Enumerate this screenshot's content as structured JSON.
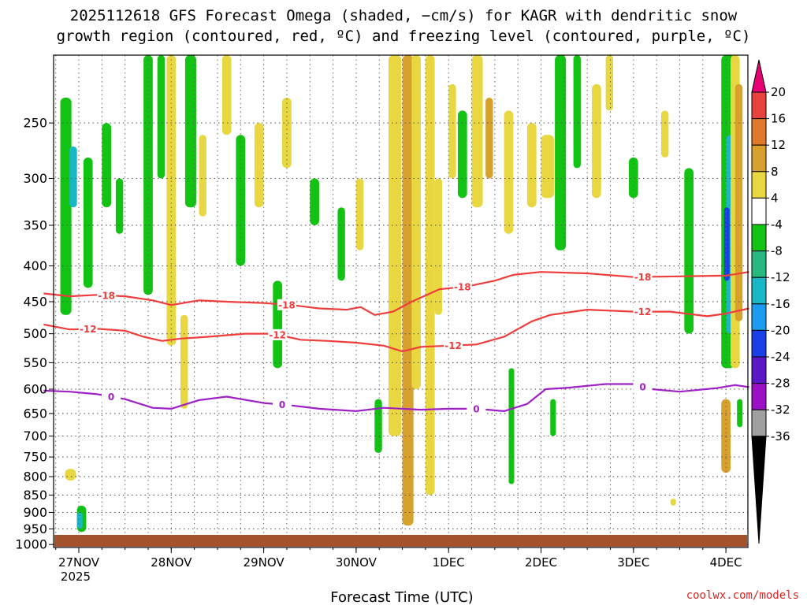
{
  "chart_data": {
    "type": "heatmap",
    "title_line1": "2025112618 GFS Forecast Omega (shaded, −cm/s) for KAGR with dendritic snow",
    "title_line2": "growth region (contoured, red, ºC) and freezing level (contoured, purple, ºC)",
    "xlabel": "Forecast Time (UTC)",
    "credit": "coolwx.com/models",
    "x_ticks": [
      {
        "t": 0,
        "label": "27NOV",
        "sub": "2025"
      },
      {
        "t": 1,
        "label": "28NOV",
        "sub": ""
      },
      {
        "t": 2,
        "label": "29NOV",
        "sub": ""
      },
      {
        "t": 3,
        "label": "30NOV",
        "sub": ""
      },
      {
        "t": 4,
        "label": "1DEC",
        "sub": ""
      },
      {
        "t": 5,
        "label": "2DEC",
        "sub": ""
      },
      {
        "t": 6,
        "label": "3DEC",
        "sub": ""
      },
      {
        "t": 7,
        "label": "4DEC",
        "sub": ""
      }
    ],
    "x_range_days": [
      -0.38,
      7.25
    ],
    "y_ticks": [
      "250",
      "300",
      "350",
      "400",
      "450",
      "500",
      "550",
      "600",
      "650",
      "700",
      "750",
      "800",
      "850",
      "900",
      "950",
      "1000"
    ],
    "y_range_hpa": [
      200,
      1010
    ],
    "y_scale": "log-pressure",
    "grid": true,
    "colorbar": {
      "labels": [
        "20",
        "16",
        "12",
        "8",
        "4",
        "-4",
        "-8",
        "-12",
        "-16",
        "-20",
        "-24",
        "-28",
        "-32",
        "-36"
      ],
      "colors": [
        "#e60073",
        "#e8423f",
        "#e0792a",
        "#d8a12e",
        "#e8d740",
        "#ffffff",
        "#13c313",
        "#27b97f",
        "#19b6c8",
        "#1c9cf0",
        "#1a3fe6",
        "#5a18c8",
        "#9b0fc7",
        "#a0a0a0",
        "#000000"
      ]
    },
    "contours": [
      {
        "name": "-18",
        "color": "#ef3c3c",
        "labels_at": [
          0.3,
          2.25,
          4.15,
          6.1
        ],
        "points": [
          [
            -0.38,
            438
          ],
          [
            -0.1,
            442
          ],
          [
            0.2,
            440
          ],
          [
            0.5,
            442
          ],
          [
            0.8,
            448
          ],
          [
            1.0,
            455
          ],
          [
            1.3,
            448
          ],
          [
            1.6,
            450
          ],
          [
            2.0,
            452
          ],
          [
            2.3,
            455
          ],
          [
            2.6,
            460
          ],
          [
            2.9,
            462
          ],
          [
            3.05,
            458
          ],
          [
            3.2,
            470
          ],
          [
            3.4,
            465
          ],
          [
            3.6,
            450
          ],
          [
            3.9,
            432
          ],
          [
            4.2,
            428
          ],
          [
            4.5,
            420
          ],
          [
            4.7,
            412
          ],
          [
            5.0,
            408
          ],
          [
            5.5,
            410
          ],
          [
            6.0,
            415
          ],
          [
            6.5,
            414
          ],
          [
            7.0,
            413
          ],
          [
            7.25,
            408
          ]
        ]
      },
      {
        "name": "-12",
        "color": "#ef3c3c",
        "labels_at": [
          0.1,
          2.15,
          4.05,
          6.1
        ],
        "points": [
          [
            -0.38,
            485
          ],
          [
            -0.1,
            493
          ],
          [
            0.2,
            492
          ],
          [
            0.5,
            495
          ],
          [
            0.7,
            505
          ],
          [
            0.9,
            512
          ],
          [
            1.1,
            508
          ],
          [
            1.4,
            505
          ],
          [
            1.8,
            500
          ],
          [
            2.1,
            500
          ],
          [
            2.4,
            510
          ],
          [
            2.7,
            512
          ],
          [
            3.0,
            515
          ],
          [
            3.3,
            520
          ],
          [
            3.5,
            530
          ],
          [
            3.7,
            522
          ],
          [
            4.0,
            520
          ],
          [
            4.3,
            518
          ],
          [
            4.6,
            505
          ],
          [
            4.9,
            480
          ],
          [
            5.1,
            470
          ],
          [
            5.5,
            462
          ],
          [
            6.0,
            465
          ],
          [
            6.4,
            465
          ],
          [
            6.8,
            472
          ],
          [
            7.0,
            468
          ],
          [
            7.25,
            460
          ]
        ]
      },
      {
        "name": "0",
        "color": "#a020c8",
        "labels_at": [
          0.35,
          2.2,
          4.3,
          6.1
        ],
        "points": [
          [
            -0.38,
            603
          ],
          [
            -0.1,
            605
          ],
          [
            0.2,
            610
          ],
          [
            0.5,
            620
          ],
          [
            0.8,
            638
          ],
          [
            1.0,
            640
          ],
          [
            1.3,
            622
          ],
          [
            1.6,
            615
          ],
          [
            2.0,
            628
          ],
          [
            2.3,
            633
          ],
          [
            2.6,
            640
          ],
          [
            3.0,
            645
          ],
          [
            3.3,
            638
          ],
          [
            3.7,
            642
          ],
          [
            4.0,
            640
          ],
          [
            4.3,
            640
          ],
          [
            4.6,
            645
          ],
          [
            4.85,
            630
          ],
          [
            5.05,
            600
          ],
          [
            5.3,
            597
          ],
          [
            5.7,
            590
          ],
          [
            6.0,
            590
          ],
          [
            6.2,
            600
          ],
          [
            6.5,
            605
          ],
          [
            6.9,
            598
          ],
          [
            7.1,
            592
          ],
          [
            7.25,
            596
          ]
        ]
      }
    ]
  }
}
